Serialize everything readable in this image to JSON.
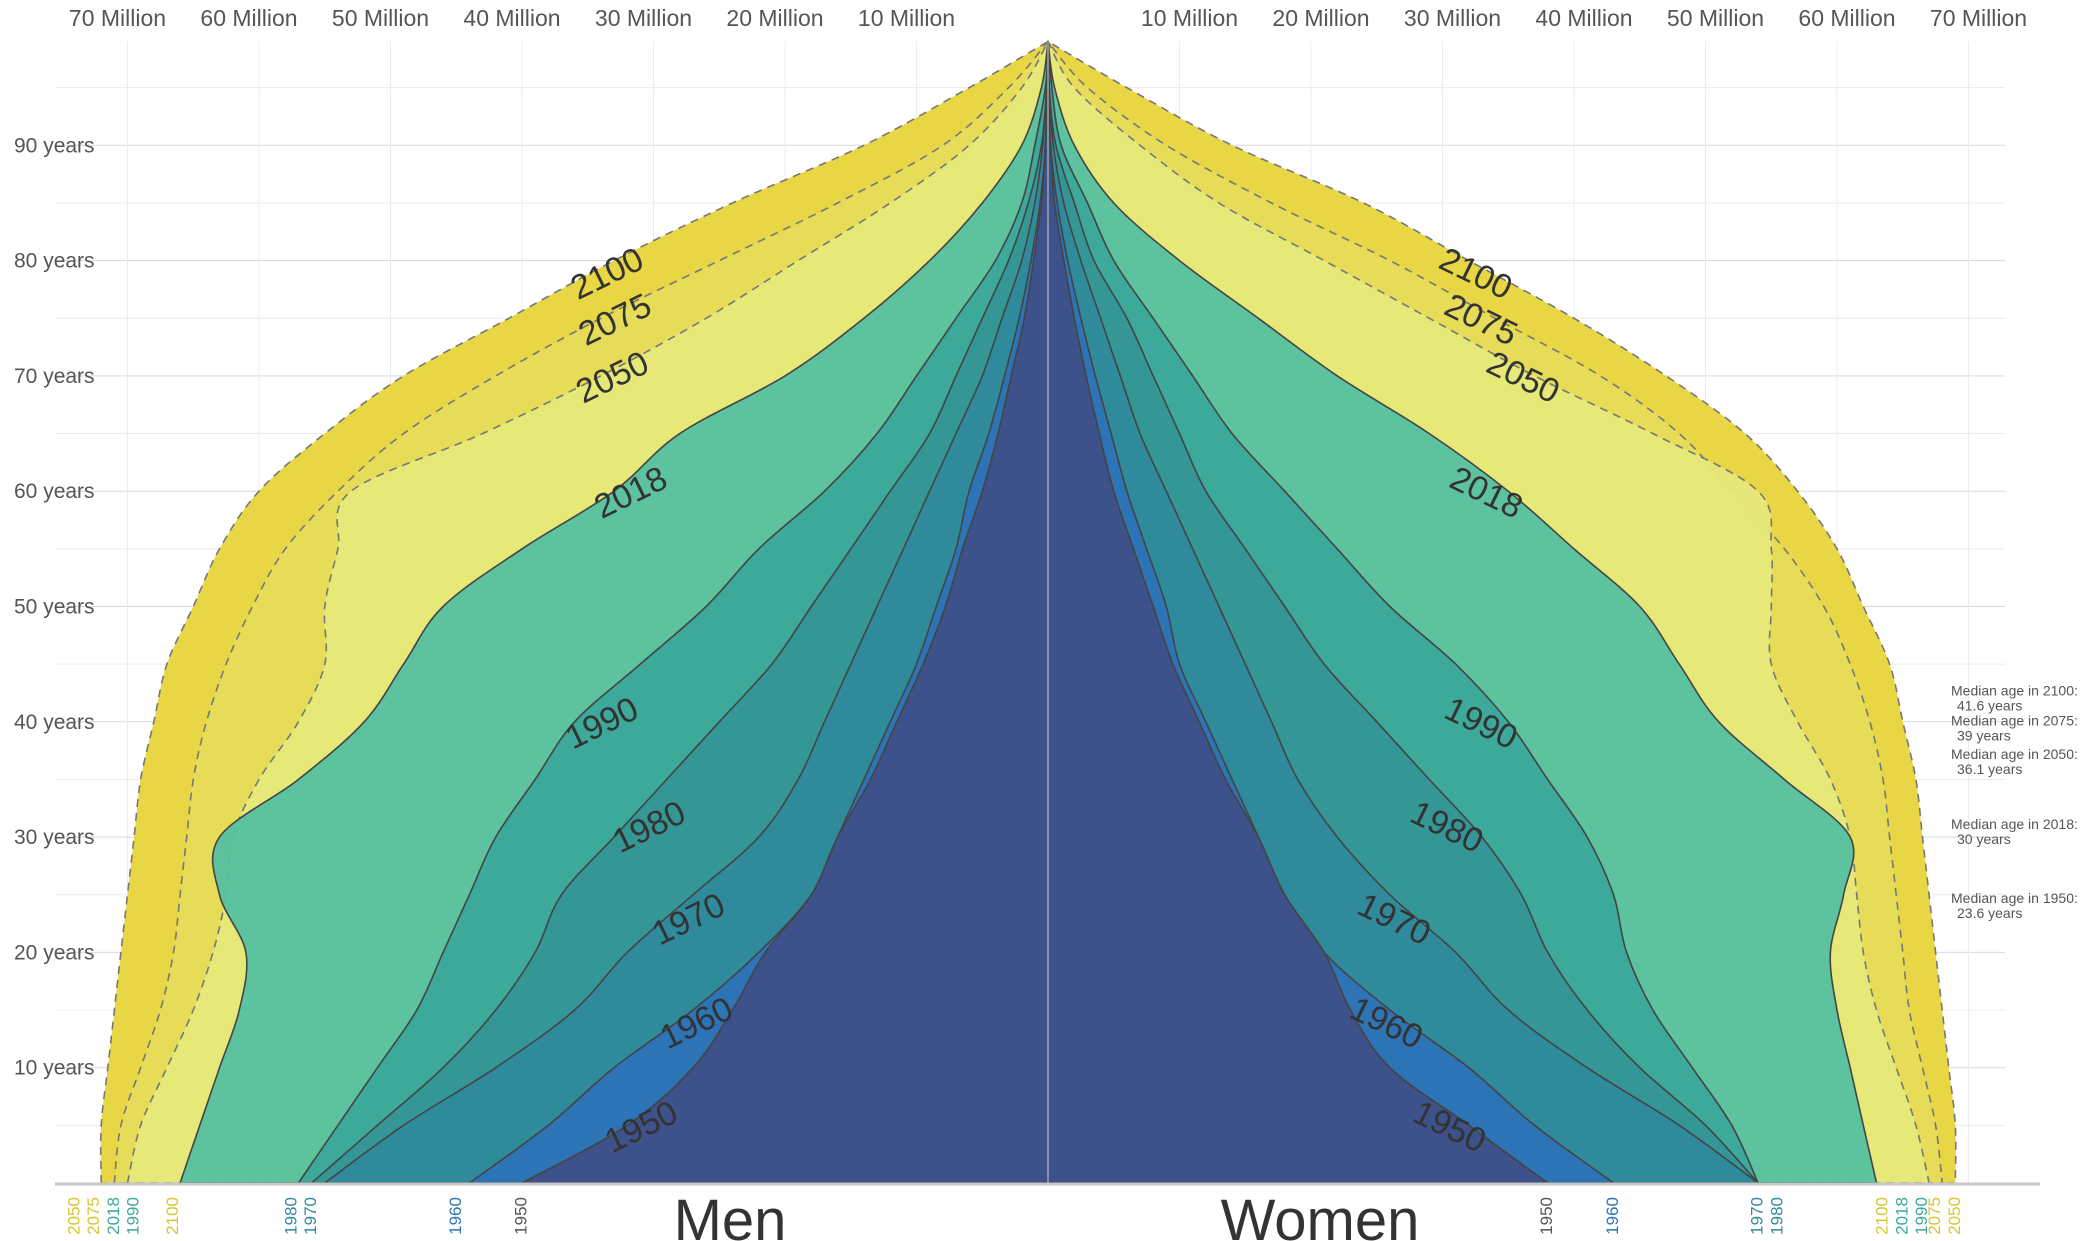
{
  "chart_data": {
    "type": "area",
    "xlabel": "",
    "ylabel": "",
    "xlim_million": [
      0,
      75
    ],
    "ylim_years": [
      0,
      99
    ],
    "x_ticks": [
      "70 Million",
      "60 Million",
      "50 Million",
      "40 Million",
      "30 Million",
      "20 Million",
      "10 Million",
      "10 Million",
      "20 Million",
      "30 Million",
      "40 Million",
      "50 Million",
      "60 Million",
      "70 Million"
    ],
    "y_ticks": [
      "10 years",
      "20 years",
      "30 years",
      "40 years",
      "50 years",
      "60 years",
      "70 years",
      "80 years",
      "90 years"
    ],
    "side_labels": {
      "left": "Men",
      "right": "Women"
    },
    "ages": [
      0,
      5,
      10,
      15,
      20,
      25,
      30,
      35,
      40,
      45,
      50,
      55,
      60,
      65,
      70,
      75,
      80,
      85,
      90,
      95,
      99
    ],
    "series": [
      {
        "name": "2100",
        "color": "#e8d43a",
        "men": [
          72,
          72,
          71.5,
          71,
          70.5,
          70,
          69.5,
          69,
          68,
          67,
          65,
          63,
          60,
          55,
          49,
          41,
          33,
          24,
          14,
          6,
          0
        ],
        "women": [
          69,
          69,
          68.5,
          68,
          67.5,
          67,
          66.5,
          66,
          65,
          64,
          62,
          60,
          57,
          53,
          47,
          40,
          32,
          24,
          14,
          6,
          0
        ]
      },
      {
        "name": "2075",
        "color": "#e6dc58",
        "men": [
          71,
          70.5,
          69,
          67.5,
          66.5,
          66,
          65.5,
          65,
          64,
          62.5,
          60.5,
          58,
          54,
          49,
          42,
          34,
          25,
          16,
          8,
          3,
          0
        ],
        "women": [
          68,
          67.5,
          66.5,
          65.5,
          65,
          64.5,
          64,
          63.5,
          62.5,
          61,
          59,
          56,
          52,
          48,
          42,
          34,
          26,
          17,
          9,
          3,
          0
        ]
      },
      {
        "name": "2050",
        "color": "#e6e87a",
        "men": [
          70,
          69,
          67,
          65,
          63.5,
          62.5,
          62,
          60,
          57,
          55,
          55,
          54,
          53,
          43,
          34,
          26,
          19,
          12,
          6,
          2,
          0
        ],
        "women": [
          67,
          66,
          64.5,
          63,
          62,
          61.5,
          61,
          59.5,
          57,
          55,
          55,
          55,
          54,
          46,
          37,
          29,
          21,
          13,
          7,
          2,
          0
        ]
      },
      {
        "name": "2018",
        "color": "#55c0a0",
        "men": [
          66,
          64.5,
          63,
          61.5,
          61,
          63,
          63,
          57,
          52,
          49,
          46,
          40,
          33,
          28,
          20,
          14,
          9,
          5,
          2,
          0.5,
          0
        ],
        "women": [
          63,
          62,
          61,
          60,
          59.5,
          60.5,
          61,
          56,
          51,
          48,
          45,
          40,
          35,
          29,
          22,
          16,
          10,
          5,
          2,
          0.5,
          0
        ]
      },
      {
        "name": "1990",
        "color": "#3aa89a",
        "men": [
          57,
          54,
          51,
          48,
          46,
          44,
          42,
          39,
          36,
          31,
          26,
          22,
          17,
          13,
          10,
          7,
          4,
          2,
          1,
          0.2,
          0
        ],
        "women": [
          54,
          52,
          49,
          46,
          44,
          43,
          41,
          38,
          35,
          31,
          26,
          22,
          18,
          14,
          11,
          8,
          5,
          3,
          1,
          0.3,
          0
        ]
      },
      {
        "name": "1980",
        "color": "#349695",
        "men": [
          56,
          51,
          46,
          42,
          39,
          37,
          33,
          29,
          25,
          21,
          18,
          15,
          12,
          9,
          7,
          5,
          3,
          1.5,
          0.5,
          0.1,
          0
        ],
        "women": [
          54,
          50,
          45,
          41,
          38,
          36,
          33,
          29,
          25,
          21,
          18,
          15,
          12,
          10,
          8,
          6,
          3.5,
          2,
          0.6,
          0.1,
          0
        ]
      },
      {
        "name": "1970",
        "color": "#2f8a9c",
        "men": [
          55,
          49,
          42,
          36,
          32,
          27,
          22,
          19,
          17,
          15,
          13,
          11,
          9,
          7,
          5,
          3.5,
          2,
          1,
          0.4,
          0.1,
          0
        ],
        "women": [
          54,
          48,
          41,
          35,
          31,
          26,
          22,
          19,
          17,
          15,
          13,
          11,
          9,
          7,
          5.5,
          4,
          2.5,
          1.2,
          0.4,
          0.1,
          0
        ]
      },
      {
        "name": "1960",
        "color": "#2d73b8",
        "men": [
          44,
          38,
          33,
          27,
          22,
          18,
          16,
          14,
          12,
          10,
          8.5,
          7,
          6,
          4.5,
          3.3,
          2.2,
          1.3,
          0.6,
          0.2,
          0.05,
          0
        ],
        "women": [
          43,
          37,
          32,
          26,
          21,
          18,
          16,
          14,
          12,
          10,
          9,
          7.5,
          6,
          4.8,
          3.6,
          2.5,
          1.5,
          0.7,
          0.2,
          0.05,
          0
        ]
      },
      {
        "name": "1950",
        "color": "#3e4f88",
        "men": [
          40,
          32,
          27,
          24,
          21.5,
          18,
          16,
          13.5,
          11.5,
          9.5,
          7.8,
          6.5,
          5,
          3.8,
          2.8,
          1.8,
          1.1,
          0.5,
          0.2,
          0.05,
          0
        ],
        "women": [
          38,
          32,
          26,
          23,
          21,
          18,
          16,
          13.5,
          11.5,
          9.5,
          8,
          6.5,
          5,
          3.9,
          2.9,
          2,
          1.2,
          0.5,
          0.2,
          0.05,
          0
        ]
      }
    ],
    "median_ages": [
      {
        "label": "Median age in 2100:",
        "value": "41.6 years",
        "age": 41.6
      },
      {
        "label": "Median age in 2075:",
        "value": "39 years",
        "age": 39
      },
      {
        "label": "Median age in 2050:",
        "value": "36.1 years",
        "age": 36.1
      },
      {
        "label": "Median age in 2018:",
        "value": "30 years",
        "age": 30
      },
      {
        "label": "Median age in 1950:",
        "value": "23.6 years",
        "age": 23.6
      }
    ],
    "foot_years_left": [
      {
        "label": "2050",
        "million": 74,
        "color": "#d8c52e"
      },
      {
        "label": "2075",
        "million": 72.5,
        "color": "#d8c52e"
      },
      {
        "label": "2018",
        "million": 71,
        "color": "#3aa89a"
      },
      {
        "label": "1990",
        "million": 69.5,
        "color": "#3aa89a"
      },
      {
        "label": "2100",
        "million": 66.5,
        "color": "#d8c52e"
      },
      {
        "label": "1980",
        "million": 57.5,
        "color": "#2f8a9c"
      },
      {
        "label": "1970",
        "million": 56,
        "color": "#2f8a9c"
      },
      {
        "label": "1960",
        "million": 45,
        "color": "#2d73b8"
      },
      {
        "label": "1950",
        "million": 40,
        "color": "#555555"
      }
    ],
    "foot_years_right": [
      {
        "label": "1950",
        "million": 38,
        "color": "#555555"
      },
      {
        "label": "1960",
        "million": 43,
        "color": "#2d73b8"
      },
      {
        "label": "1970",
        "million": 54,
        "color": "#2f8a9c"
      },
      {
        "label": "1980",
        "million": 55.5,
        "color": "#2f8a9c"
      },
      {
        "label": "2100",
        "million": 63.5,
        "color": "#d8c52e"
      },
      {
        "label": "2018",
        "million": 65,
        "color": "#3aa89a"
      },
      {
        "label": "1990",
        "million": 66.5,
        "color": "#3aa89a"
      },
      {
        "label": "2075",
        "million": 67.5,
        "color": "#d8c52e"
      },
      {
        "label": "2050",
        "million": 69,
        "color": "#d8c52e"
      }
    ]
  }
}
